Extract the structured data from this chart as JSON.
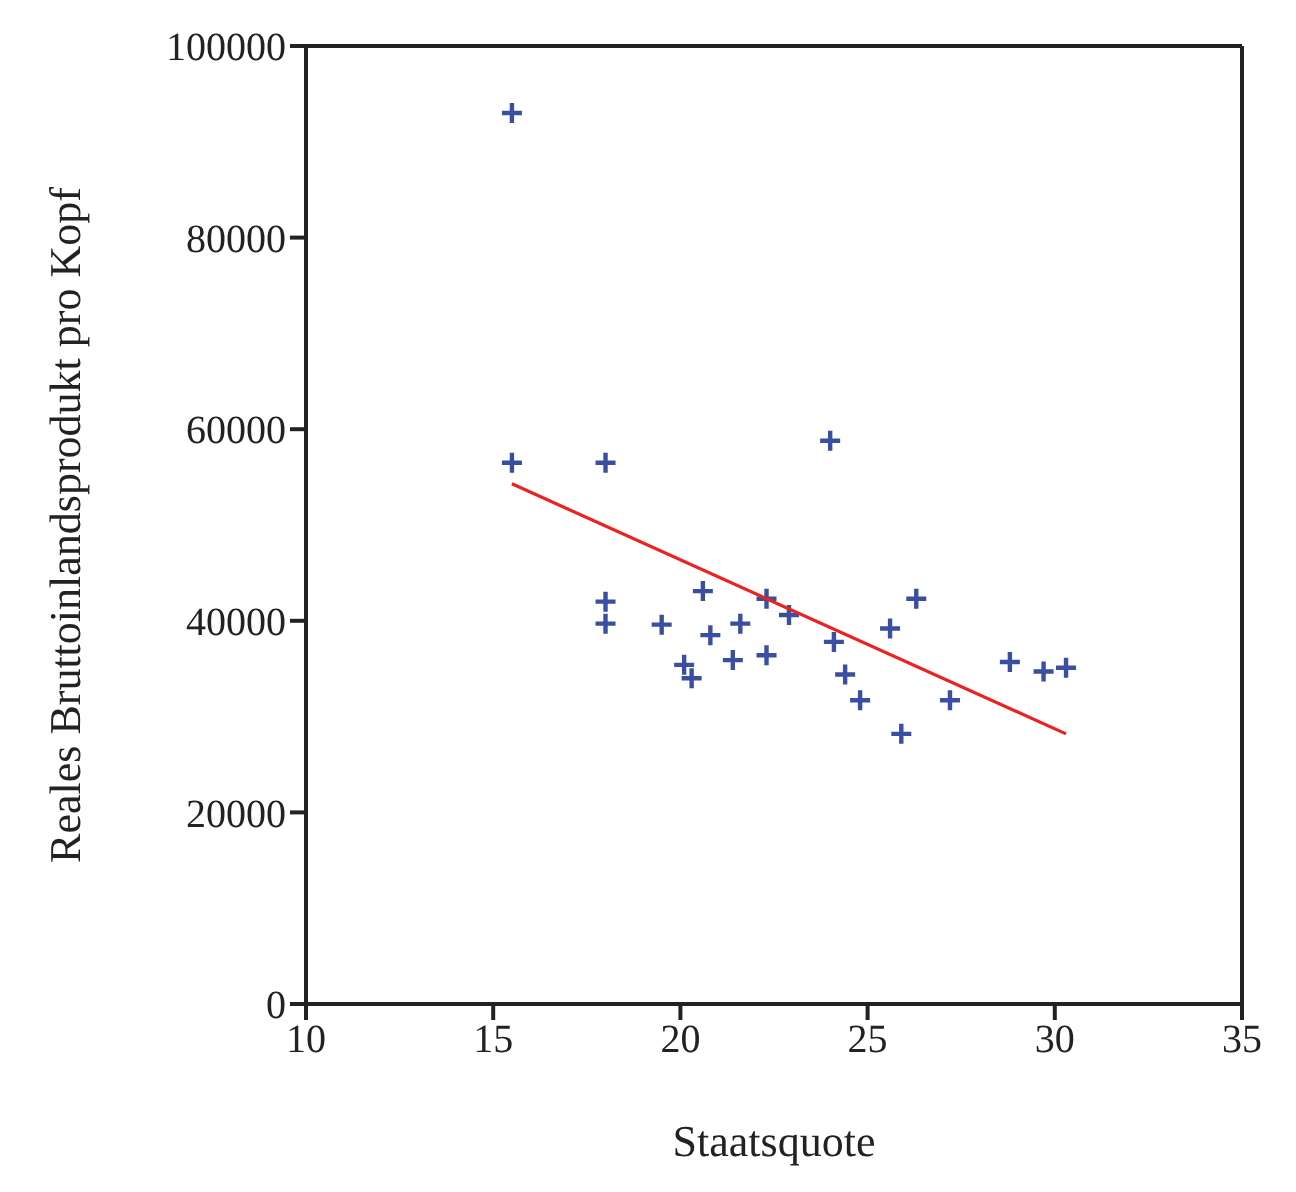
{
  "chart_data": {
    "type": "scatter",
    "xlabel": "Staatsquote",
    "ylabel": "Reales Bruttoinlandsprodukt pro Kopf",
    "xlim": [
      10,
      35
    ],
    "xticks": [
      10,
      15,
      20,
      25,
      30,
      35
    ],
    "ylim": [
      0,
      100000
    ],
    "yticks": [
      0,
      20000,
      40000,
      60000,
      80000,
      100000
    ],
    "grid": false,
    "marker": "cross",
    "series": [
      {
        "type": "scatter",
        "color": "#3a4fa0",
        "x": [
          15.5,
          15.5,
          18,
          24,
          18,
          18,
          19.5,
          20.6,
          20.1,
          20.3,
          20.8,
          21.4,
          21.6,
          22.3,
          22.3,
          22.9,
          24.1,
          24.4,
          24.8,
          25.6,
          25.9,
          26.3,
          27.2,
          28.8,
          29.7,
          30.3
        ],
        "values": [
          93000,
          56500,
          56500,
          58800,
          42000,
          39700,
          39600,
          43100,
          35400,
          34000,
          38500,
          35900,
          39700,
          36400,
          42300,
          40600,
          37800,
          34400,
          31700,
          39200,
          28200,
          42300,
          31700,
          35700,
          34700,
          35100
        ]
      },
      {
        "type": "line",
        "color": "#ee2020",
        "line_style": "solid",
        "marker": "none",
        "x": [
          15.5,
          30.3
        ],
        "values": [
          54300,
          28200
        ]
      }
    ]
  }
}
